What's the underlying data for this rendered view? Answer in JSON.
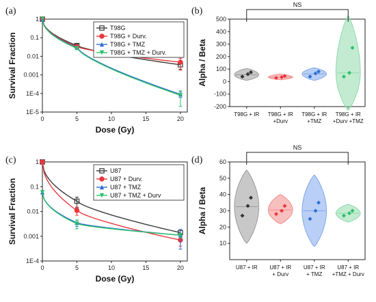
{
  "panel_labels": [
    "(a)",
    "(b)",
    "(c)",
    "(d)"
  ],
  "chart_data": [
    {
      "type": "line",
      "panel": "(a)",
      "xlabel": "Dose (Gy)",
      "ylabel": "Survival Fraction",
      "ylog": true,
      "ylim": [
        1e-05,
        1
      ],
      "xlim": [
        0,
        21
      ],
      "xticks": [
        0,
        5,
        10,
        15,
        20
      ],
      "yticks": [
        1,
        0.1,
        0.01,
        0.001,
        0.0001,
        1e-05
      ],
      "ytick_labels": [
        "1",
        "0.1",
        "0.01",
        "0.001",
        "1E-4",
        "1E-5"
      ],
      "legend_position": "top-right",
      "series": [
        {
          "name": "T98G",
          "color": "#3a3a3a",
          "marker": "square",
          "points": [
            [
              0,
              1
            ],
            [
              5,
              0.038
            ],
            [
              20,
              0.0035
            ]
          ],
          "err": [
            0,
            0.008,
            0.0015
          ]
        },
        {
          "name": "T98G + Durv.",
          "color": "#e8383d",
          "marker": "circle",
          "points": [
            [
              0,
              1
            ],
            [
              5,
              0.033
            ],
            [
              20,
              0.0048
            ]
          ],
          "err": [
            0,
            0.006,
            0.003
          ]
        },
        {
          "name": "T98G + TMZ",
          "color": "#2d6fd6",
          "marker": "triangle",
          "points": [
            [
              0,
              1
            ],
            [
              5,
              0.029
            ],
            [
              20,
              9e-05
            ]
          ],
          "err": [
            0,
            0.005,
            3e-05
          ]
        },
        {
          "name": "T98G + TMZ + Durv.",
          "color": "#2fbf6a",
          "marker": "triangle-down",
          "points": [
            [
              0,
              1
            ],
            [
              5,
              0.027
            ],
            [
              20,
              8e-05
            ]
          ],
          "err": [
            0,
            0.004,
            6e-05
          ]
        }
      ]
    },
    {
      "type": "violin",
      "panel": "(b)",
      "ylabel": "Alpha / Beta",
      "ylim": [
        -200,
        500
      ],
      "yticks": [
        -200,
        -100,
        0,
        100,
        200,
        300,
        400,
        500
      ],
      "categories": [
        "T98G + IR",
        "T98G + IR\n+Durv",
        "T98G + IR\n+TMZ",
        "T98G + IR\n+Durv +TMZ"
      ],
      "annotation": "NS",
      "series": [
        {
          "category_index": 0,
          "color": "#9a9a9a",
          "points": [
            40,
            60,
            75
          ],
          "median": 55,
          "range": [
            10,
            105
          ]
        },
        {
          "category_index": 1,
          "color": "#f28b8b",
          "points": [
            30,
            35,
            45
          ],
          "median": 35,
          "range": [
            15,
            60
          ]
        },
        {
          "category_index": 2,
          "color": "#7fa8ec",
          "points": [
            40,
            65,
            80
          ],
          "median": 62,
          "range": [
            10,
            110
          ]
        },
        {
          "category_index": 3,
          "color": "#8fdbab",
          "points": [
            40,
            70,
            270
          ],
          "median": 70,
          "range": [
            -230,
            530
          ]
        }
      ]
    },
    {
      "type": "line",
      "panel": "(c)",
      "xlabel": "Dose (Gy)",
      "ylabel": "Survival Fraction",
      "ylog": true,
      "ylim": [
        0.0001,
        1
      ],
      "xlim": [
        0,
        21
      ],
      "xticks": [
        0,
        5,
        10,
        15,
        20
      ],
      "yticks": [
        1,
        0.1,
        0.01,
        0.001,
        0.0001
      ],
      "ytick_labels": [
        "1",
        "0.1",
        "0.01",
        "0.001",
        "1E-4"
      ],
      "legend_position": "top-right",
      "series": [
        {
          "name": "U87",
          "color": "#3a3a3a",
          "marker": "square",
          "points": [
            [
              0,
              1
            ],
            [
              5,
              0.026
            ],
            [
              20,
              0.0014
            ]
          ],
          "err": [
            0,
            0.012,
            0.0003
          ]
        },
        {
          "name": "U87 + Durv.",
          "color": "#e8383d",
          "marker": "circle",
          "points": [
            [
              0,
              1
            ],
            [
              5,
              0.011
            ],
            [
              20,
              0.0007
            ]
          ],
          "err": [
            0,
            0.004,
            0.0003
          ]
        },
        {
          "name": "U87 + TMZ",
          "color": "#2d6fd6",
          "marker": "triangle",
          "points": [
            [
              0,
              0.06
            ],
            [
              5,
              0.0035
            ],
            [
              20,
              0.0011
            ]
          ],
          "err": [
            0,
            0.001,
            0.0008
          ]
        },
        {
          "name": "U87 + TMZ + Durv",
          "color": "#2fbf6a",
          "marker": "triangle-down",
          "points": [
            [
              0,
              0.06
            ],
            [
              5,
              0.0032
            ],
            [
              20,
              0.0011
            ]
          ],
          "err": [
            0,
            0.0012,
            0.0002
          ]
        }
      ]
    },
    {
      "type": "violin",
      "panel": "(d)",
      "ylabel": "Alpha / Beta",
      "ylim": [
        0,
        60
      ],
      "yticks": [
        10,
        20,
        30,
        40,
        50,
        60
      ],
      "categories": [
        "U87 + IR",
        "U87 + IR\n+ Durv",
        "U87 + IR\n+ TMZ",
        "U87 + IR\n+TMZ + Durv"
      ],
      "annotation": "NS",
      "series": [
        {
          "category_index": 0,
          "color": "#9a9a9a",
          "points": [
            27,
            33,
            38
          ],
          "median": 32.5,
          "range": [
            10,
            55
          ]
        },
        {
          "category_index": 1,
          "color": "#f28b8b",
          "points": [
            28,
            30,
            33
          ],
          "median": 30.5,
          "range": [
            22,
            40
          ]
        },
        {
          "category_index": 2,
          "color": "#7fa8ec",
          "points": [
            25,
            30,
            35
          ],
          "median": 30,
          "range": [
            8,
            52
          ]
        },
        {
          "category_index": 3,
          "color": "#8fdbab",
          "points": [
            27,
            28.5,
            30
          ],
          "median": 28.5,
          "range": [
            23,
            34
          ]
        }
      ]
    }
  ]
}
